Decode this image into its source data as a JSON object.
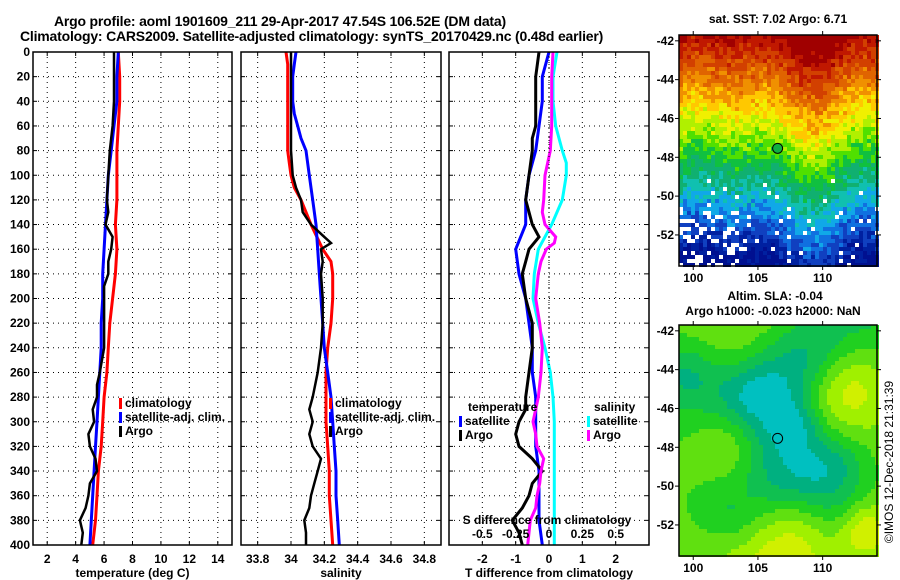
{
  "header": {
    "title_line1": "Argo profile: aoml 1901609_211 29-Apr-2017 47.54S 106.52E (DM data)",
    "title_line2": "Climatology: CARS2009. Satellite-adjusted climatology: synTS_20170429.nc (0.48d earlier)"
  },
  "colors": {
    "climatology": "#ff0000",
    "satellite": "#0000ff",
    "argo": "#000000",
    "sal_satellite": "#00ffff",
    "sal_argo": "#ff00ff"
  },
  "chart_data": [
    {
      "type": "line",
      "name": "temperature-profile",
      "xlabel": "temperature (deg C)",
      "ylabel": "",
      "xlim": [
        1,
        15
      ],
      "ylim": [
        400,
        0
      ],
      "xticks": [
        2,
        4,
        6,
        8,
        10,
        12,
        14
      ],
      "yticks": [
        0,
        20,
        40,
        60,
        80,
        100,
        120,
        140,
        160,
        180,
        200,
        220,
        240,
        260,
        280,
        300,
        320,
        340,
        360,
        380,
        400
      ],
      "grid": true,
      "legend": {
        "placement": "center-right",
        "entries": [
          "climatology",
          "satellite-adj. clim.",
          "Argo"
        ]
      },
      "series": [
        {
          "name": "climatology",
          "color_key": "climatology",
          "depth": [
            0,
            20,
            40,
            60,
            80,
            100,
            120,
            140,
            160,
            180,
            200,
            220,
            240,
            260,
            280,
            300,
            320,
            340,
            360,
            380,
            400
          ],
          "values": [
            7.0,
            7.1,
            7.1,
            7.0,
            6.9,
            6.9,
            6.9,
            6.8,
            6.9,
            6.8,
            6.6,
            6.4,
            6.3,
            6.2,
            6.0,
            5.9,
            5.8,
            5.6,
            5.5,
            5.4,
            5.2
          ]
        },
        {
          "name": "satellite-adj. clim.",
          "color_key": "satellite",
          "depth": [
            0,
            20,
            40,
            60,
            80,
            100,
            120,
            140,
            160,
            180,
            200,
            220,
            240,
            260,
            280,
            300,
            320,
            340,
            360,
            380,
            400
          ],
          "values": [
            7.0,
            6.9,
            6.9,
            6.7,
            6.5,
            6.3,
            6.2,
            6.1,
            6.0,
            5.9,
            5.9,
            5.8,
            5.8,
            5.7,
            5.6,
            5.5,
            5.4,
            5.3,
            5.2,
            5.1,
            5.0
          ]
        },
        {
          "name": "Argo",
          "color_key": "argo",
          "depth": [
            0,
            20,
            40,
            60,
            70,
            80,
            100,
            120,
            130,
            140,
            150,
            160,
            170,
            180,
            190,
            200,
            220,
            240,
            260,
            270,
            280,
            290,
            300,
            310,
            320,
            330,
            340,
            350,
            360,
            370,
            380,
            390,
            400
          ],
          "values": [
            6.7,
            6.7,
            6.7,
            6.6,
            6.5,
            6.4,
            6.3,
            6.2,
            6.3,
            6.1,
            6.6,
            6.5,
            6.3,
            6.3,
            6.0,
            6.0,
            6.0,
            6.0,
            5.7,
            5.5,
            5.5,
            5.2,
            5.3,
            4.9,
            5.0,
            5.4,
            5.5,
            5.0,
            4.9,
            4.7,
            4.3,
            4.5,
            4.4
          ]
        }
      ]
    },
    {
      "type": "line",
      "name": "salinity-profile",
      "xlabel": "salinity",
      "xlim": [
        33.7,
        34.9
      ],
      "ylim": [
        400,
        0
      ],
      "xticks": [
        33.8,
        34,
        34.2,
        34.4,
        34.6,
        34.8
      ],
      "xticklabels": [
        "33.8",
        "34",
        "34.2",
        "34.4",
        "34.6",
        "34.8"
      ],
      "grid": true,
      "legend": {
        "placement": "center-right",
        "entries": [
          "climatology",
          "satellite-adj. clim.",
          "Argo"
        ]
      },
      "series": [
        {
          "name": "climatology",
          "color_key": "climatology",
          "depth": [
            0,
            10,
            20,
            40,
            60,
            80,
            90,
            100,
            110,
            120,
            140,
            160,
            170,
            180,
            200,
            220,
            240,
            260,
            280,
            300,
            320,
            340,
            360,
            380,
            400
          ],
          "values": [
            33.97,
            33.98,
            33.98,
            33.98,
            33.98,
            33.98,
            33.99,
            34.0,
            34.02,
            34.06,
            34.12,
            34.19,
            34.24,
            34.25,
            34.25,
            34.24,
            34.22,
            34.21,
            34.21,
            34.21,
            34.22,
            34.23,
            34.23,
            34.24,
            34.25
          ]
        },
        {
          "name": "satellite-adj. clim.",
          "color_key": "satellite",
          "depth": [
            0,
            10,
            20,
            40,
            50,
            60,
            70,
            80,
            100,
            120,
            140,
            160,
            180,
            200,
            220,
            240,
            260,
            280,
            300,
            320,
            340,
            360,
            380,
            400
          ],
          "values": [
            34.03,
            34.02,
            34.01,
            34.01,
            34.02,
            34.04,
            34.06,
            34.09,
            34.11,
            34.13,
            34.15,
            34.16,
            34.17,
            34.18,
            34.19,
            34.2,
            34.22,
            34.24,
            34.25,
            34.26,
            34.27,
            34.27,
            34.28,
            34.29
          ]
        },
        {
          "name": "Argo",
          "color_key": "argo",
          "depth": [
            0,
            20,
            40,
            60,
            80,
            100,
            110,
            120,
            130,
            140,
            150,
            155,
            160,
            170,
            180,
            200,
            220,
            240,
            260,
            280,
            290,
            300,
            310,
            320,
            330,
            340,
            350,
            360,
            370,
            380,
            390,
            400
          ],
          "values": [
            34.0,
            34.0,
            34.0,
            34.0,
            34.0,
            34.01,
            34.03,
            34.06,
            34.07,
            34.12,
            34.2,
            34.24,
            34.18,
            34.19,
            34.18,
            34.19,
            34.19,
            34.18,
            34.16,
            34.13,
            34.11,
            34.13,
            34.11,
            34.13,
            34.18,
            34.16,
            34.14,
            34.12,
            34.11,
            34.08,
            34.09,
            34.09
          ]
        }
      ]
    },
    {
      "type": "line",
      "name": "difference-profile",
      "xlabel": "T difference from climatology",
      "xlabel2": "S difference from climatology",
      "xlim": [
        -3,
        3
      ],
      "ylim": [
        400,
        0
      ],
      "xticks": [
        -2,
        -1,
        0,
        1,
        2
      ],
      "xticks2": [
        -0.5,
        -0.25,
        0,
        0.25,
        0.5
      ],
      "xticklabels2": [
        "-0.5",
        "-0.25",
        "0",
        "0.25",
        "0.5"
      ],
      "grid": true,
      "legend": {
        "placement": "center",
        "groups": [
          {
            "title": "temperature",
            "entries": [
              "satellite",
              "Argo"
            ]
          },
          {
            "title": "salinity",
            "entries": [
              "satellite",
              "Argo"
            ]
          }
        ]
      },
      "series": [
        {
          "name": "temperature satellite",
          "color_key": "satellite",
          "depth": [
            0,
            20,
            40,
            60,
            80,
            100,
            120,
            140,
            160,
            180,
            200,
            220,
            240,
            260,
            280,
            300,
            320,
            340,
            360,
            380,
            400
          ],
          "values": [
            0.0,
            -0.2,
            -0.2,
            -0.3,
            -0.4,
            -0.6,
            -0.7,
            -0.7,
            -1.0,
            -0.9,
            -0.7,
            -0.6,
            -0.5,
            -0.5,
            -0.4,
            -0.4,
            -0.4,
            -0.3,
            -0.3,
            -0.3,
            -0.2
          ]
        },
        {
          "name": "temperature Argo",
          "color_key": "argo",
          "depth": [
            0,
            20,
            40,
            60,
            70,
            80,
            100,
            120,
            130,
            140,
            150,
            160,
            170,
            180,
            200,
            220,
            240,
            260,
            280,
            290,
            300,
            310,
            320,
            330,
            340,
            350,
            360,
            370,
            380,
            390,
            400
          ],
          "values": [
            -0.3,
            -0.4,
            -0.4,
            -0.4,
            -0.5,
            -0.5,
            -0.6,
            -0.7,
            -0.6,
            -0.5,
            -0.3,
            -0.6,
            -0.7,
            -0.8,
            -0.7,
            -0.5,
            -0.5,
            -0.6,
            -0.7,
            -0.7,
            -0.9,
            -1.0,
            -0.9,
            -0.5,
            -0.2,
            -0.5,
            -0.6,
            -0.8,
            -1.1,
            -0.9,
            -0.8
          ]
        },
        {
          "name": "salinity satellite",
          "color_key": "sal_satellite",
          "depth": [
            0,
            20,
            40,
            60,
            80,
            90,
            100,
            120,
            140,
            150,
            160,
            180,
            200,
            220,
            240,
            260,
            280,
            300,
            320,
            340,
            360,
            380,
            400
          ],
          "values": [
            0.06,
            0.03,
            0.03,
            0.05,
            0.1,
            0.13,
            0.13,
            0.1,
            0.02,
            -0.03,
            -0.08,
            -0.11,
            -0.12,
            -0.08,
            -0.03,
            0.01,
            0.03,
            0.04,
            0.04,
            0.04,
            0.04,
            0.04,
            0.04
          ]
        },
        {
          "name": "salinity Argo",
          "color_key": "sal_argo",
          "depth": [
            0,
            20,
            40,
            60,
            80,
            100,
            120,
            130,
            140,
            150,
            155,
            160,
            170,
            180,
            200,
            220,
            240,
            260,
            280,
            290,
            300,
            310,
            320,
            330,
            340,
            350,
            360,
            370,
            380,
            390,
            400
          ],
          "values": [
            0.03,
            0.02,
            0.02,
            0.02,
            0.01,
            -0.03,
            -0.04,
            -0.05,
            -0.03,
            0.05,
            0.04,
            -0.02,
            -0.06,
            -0.08,
            -0.1,
            -0.07,
            -0.05,
            -0.06,
            -0.08,
            -0.1,
            -0.12,
            -0.1,
            -0.09,
            -0.04,
            -0.06,
            -0.07,
            -0.09,
            -0.1,
            -0.14,
            -0.15,
            -0.16
          ]
        }
      ]
    },
    {
      "type": "heatmap",
      "name": "sst-map",
      "title": "sat. SST: 7.02 Argo: 6.71",
      "xlim": [
        98.9,
        114.2
      ],
      "ylim": [
        -53.6,
        -41.7
      ],
      "xticks": [
        100,
        105,
        110
      ],
      "yticks": [
        -42,
        -44,
        -46,
        -48,
        -50,
        -52
      ],
      "marker": {
        "lon": 106.52,
        "lat": -47.54
      }
    },
    {
      "type": "heatmap",
      "name": "sla-map",
      "title": "Altim. SLA: -0.04",
      "subtitle": "Argo h1000: -0.023 h2000: NaN",
      "xlim": [
        98.9,
        114.2
      ],
      "ylim": [
        -53.6,
        -41.7
      ],
      "xticks": [
        100,
        105,
        110
      ],
      "yticks": [
        -42,
        -44,
        -46,
        -48,
        -50,
        -52
      ],
      "marker": {
        "lon": 106.52,
        "lat": -47.54
      }
    }
  ],
  "watermark": "©IMOS 12-Dec-2018 21:31:39"
}
